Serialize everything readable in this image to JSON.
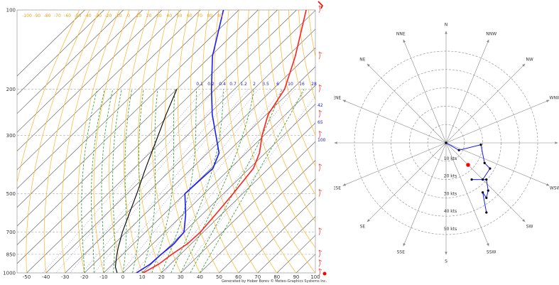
{
  "credit": "Generated by Hober Borev © Meteo-Graphics Systems Inc.",
  "colors": {
    "temperature": "#ff2020",
    "dewpoint": "#1a1aff",
    "parcel": "#000000",
    "isotherm": "#555555",
    "dry_adiabat": "#ffb428",
    "moist_adiabat": "#2a9a2a",
    "mixing_ratio": "#8080d0",
    "hodograph": "#1a1aff",
    "storm_motion": "#ff0000",
    "axis_labels": "#333333",
    "adiabat_labels": "#e8a020"
  },
  "chart_data": [
    {
      "type": "line",
      "subtype": "skew-t log-p",
      "title": "",
      "xlabel": "",
      "ylabel": "",
      "x_ticks": [
        -50,
        -40,
        -30,
        -20,
        -10,
        0,
        10,
        20,
        30,
        40,
        50,
        60,
        70,
        80,
        90,
        100
      ],
      "x_tick_labels": [
        "-50",
        "-40",
        "-30",
        "-20",
        "-10",
        "0",
        "10",
        "20",
        "30",
        "40",
        "50",
        "60",
        "70",
        "80",
        "90",
        "100"
      ],
      "y_ticks": [
        100,
        200,
        300,
        500,
        700,
        850,
        1000
      ],
      "y_tick_labels": [
        "100",
        "200",
        "300",
        "500",
        "700",
        "850",
        "1000"
      ],
      "xlim": [
        -55,
        100
      ],
      "ylim": [
        1000,
        100
      ],
      "y_scale": "log",
      "dry_adiabat_labels": [
        "-100",
        "-90",
        "-80",
        "-70",
        "-60",
        "-50",
        "-40",
        "-30",
        "-20",
        "-10",
        "0",
        "10",
        "20",
        "30",
        "40",
        "50",
        "60",
        "70",
        "80",
        "90"
      ],
      "mixing_ratio_labels": [
        "0.1",
        "0.2",
        "0.4",
        "0.7",
        "1.2",
        "2",
        "3.5",
        "6",
        "10",
        "16",
        "28"
      ],
      "height_labels": [
        "42",
        "65",
        "100"
      ],
      "series": [
        {
          "key": "temperature",
          "pressure": [
            1000,
            925,
            850,
            775,
            700,
            600,
            500,
            400,
            350,
            300,
            250,
            200,
            150,
            100
          ],
          "temperature": [
            10.5,
            14,
            15.5,
            18,
            18.5,
            17,
            15,
            12,
            7,
            -1,
            -9,
            -14,
            -26,
            -45
          ]
        },
        {
          "key": "dewpoint",
          "pressure": [
            1000,
            925,
            850,
            775,
            700,
            600,
            500,
            400,
            350,
            300,
            250,
            200,
            150,
            100
          ],
          "temperature": [
            7,
            9.5,
            10,
            11,
            10,
            1.5,
            -10,
            -9,
            -14,
            -25,
            -38,
            -52,
            -69,
            -88
          ]
        },
        {
          "key": "parcel",
          "pressure": [
            1000,
            950,
            900,
            850,
            800,
            700,
            600,
            500,
            400,
            300,
            250,
            200
          ],
          "temperature": [
            -3,
            -7,
            -10,
            -13,
            -16,
            -22,
            -28,
            -35,
            -44,
            -55,
            -62,
            -70
          ]
        }
      ],
      "wind_barbs_pressure": [
        100,
        150,
        200,
        250,
        300,
        400,
        500,
        700,
        850,
        925,
        1000
      ]
    },
    {
      "type": "scatter",
      "subtype": "hodograph",
      "title": "",
      "ring_labels": [
        "10 kts",
        "20 kts",
        "30 kts",
        "40 kts",
        "50 kts"
      ],
      "directions": [
        "N",
        "NNW",
        "NW",
        "WNW",
        "W",
        "WSW",
        "SW",
        "SSW",
        "S",
        "SSE",
        "SE",
        "ESE",
        "E",
        "ENE",
        "NE",
        "NNE"
      ],
      "hodograph": {
        "points_u_v": [
          [
            0,
            0
          ],
          [
            7,
            -4
          ],
          [
            19,
            -1
          ],
          [
            21,
            -11
          ],
          [
            24,
            -14
          ],
          [
            20,
            -20
          ],
          [
            14,
            -20
          ],
          [
            22,
            -20
          ],
          [
            23,
            -26
          ],
          [
            22,
            -30
          ],
          [
            20,
            -27
          ],
          [
            22,
            -38
          ]
        ]
      },
      "storm_motion_u_v": [
        12,
        -12
      ]
    }
  ]
}
